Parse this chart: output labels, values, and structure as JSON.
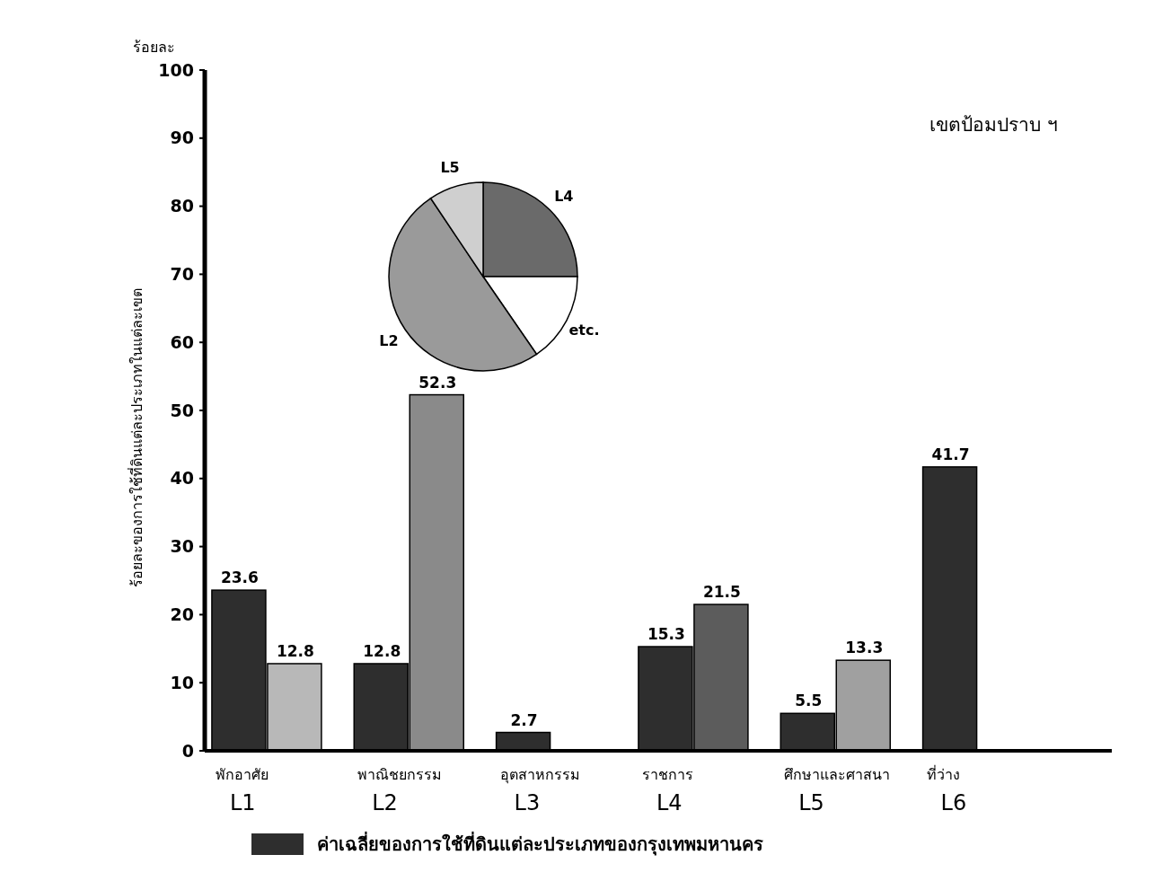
{
  "chart_data": [
    {
      "type": "bar",
      "title": "เขตป้อมปราบ ฯ",
      "ylabel": "ร้อยละของการใช้ที่ดินแต่ละประเภทในแต่ละเขต",
      "annotations": [
        "ร้อยละ"
      ],
      "categories": [
        "พักอาศัย\nL1",
        "พาณิชยกรรม\nL2",
        "อุตสาหกรรม\nL3",
        "ราชการ\nL4",
        "ศึกษาและศาสนา\nL5",
        "ที่ว่าง\nL6"
      ],
      "series": [
        {
          "name": "ค่าเฉลี่ยของการใช้ที่ดินแต่ละประเภทของกรุงเทพมหานคร",
          "color": "#2e2e2e",
          "values": [
            23.6,
            12.8,
            2.7,
            15.3,
            5.5,
            41.7
          ]
        },
        {
          "colors": [
            "#b8b8b8",
            "#8a8a8a",
            null,
            "#5c5c5c",
            "#a0a0a0",
            null
          ],
          "values": [
            12.8,
            52.3,
            null,
            21.5,
            13.3,
            null
          ]
        }
      ],
      "ylim": [
        0,
        100
      ],
      "yticks": [
        0,
        10,
        20,
        30,
        40,
        50,
        60,
        70,
        80,
        90,
        100
      ],
      "data_labels": true,
      "legend": "bottom",
      "grid": false
    },
    {
      "type": "pie",
      "categories": [
        "L4",
        "etc.",
        "L2",
        "L5"
      ],
      "values": [
        25,
        15.4,
        50.2,
        9.4
      ],
      "colors": [
        "#6a6a6a",
        "#ffffff",
        "#9a9a9a",
        "#cfcfcf"
      ]
    }
  ]
}
